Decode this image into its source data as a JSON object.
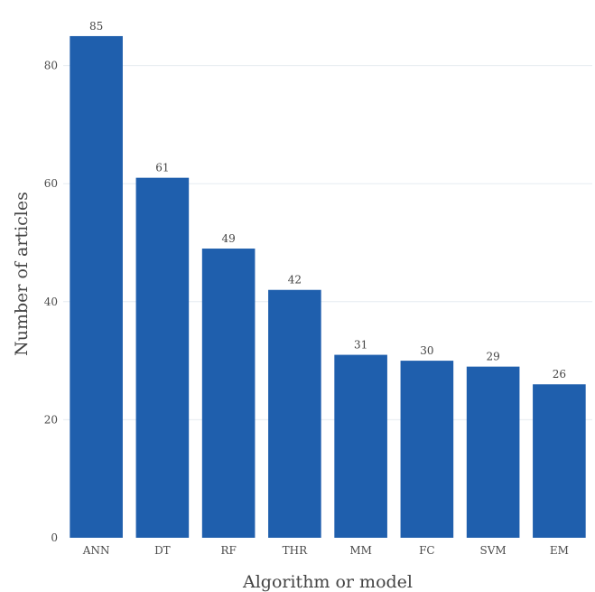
{
  "chart_data": {
    "type": "bar",
    "categories": [
      "ANN",
      "DT",
      "RF",
      "THR",
      "MM",
      "FC",
      "SVM",
      "EM"
    ],
    "values": [
      85,
      61,
      49,
      42,
      31,
      30,
      29,
      26
    ],
    "title": "",
    "xlabel": "Algorithm or model",
    "ylabel": "Number of articles",
    "ylim": [
      0,
      88
    ],
    "yticks": [
      0,
      20,
      40,
      60,
      80
    ],
    "grid": true,
    "bar_color": "#1f5fad"
  }
}
